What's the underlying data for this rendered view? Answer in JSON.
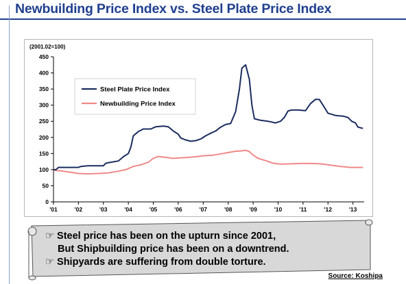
{
  "page": {
    "title": "Newbuilding Price Index vs. Steel Plate Price Index",
    "banner_lines": [
      "☞ Steel price has been on the upturn since 2001,",
      "But Shipbuilding price has been on a downtrend.",
      "☞ Shipyards are suffering from double torture."
    ],
    "source": "Source: Koshipa"
  },
  "chart_data": {
    "type": "line",
    "unit_label": "(2001.02=100)",
    "ylim": [
      0,
      450
    ],
    "yticks": [
      0,
      50,
      100,
      150,
      200,
      250,
      300,
      350,
      400,
      450
    ],
    "xlim": [
      2001,
      2013.45
    ],
    "xticks": [
      {
        "v": 2001,
        "label": "'01"
      },
      {
        "v": 2002,
        "label": "'02"
      },
      {
        "v": 2003,
        "label": "'03"
      },
      {
        "v": 2004,
        "label": "'04"
      },
      {
        "v": 2005,
        "label": "'05"
      },
      {
        "v": 2006,
        "label": "'06"
      },
      {
        "v": 2007,
        "label": "'07"
      },
      {
        "v": 2008,
        "label": "'08"
      },
      {
        "v": 2009,
        "label": "'09"
      },
      {
        "v": 2010,
        "label": "'10"
      },
      {
        "v": 2011,
        "label": "'11"
      },
      {
        "v": 2012,
        "label": "'12"
      },
      {
        "v": 2013,
        "label": "'13"
      }
    ],
    "legend_position": "top-left",
    "grid": false,
    "series": [
      {
        "name": "Steel Plate Price Index",
        "color": "#1a2c5e",
        "points": [
          [
            2001.0,
            100
          ],
          [
            2001.1,
            100
          ],
          [
            2001.2,
            107
          ],
          [
            2001.5,
            107
          ],
          [
            2002.0,
            107
          ],
          [
            2002.1,
            110
          ],
          [
            2002.4,
            112
          ],
          [
            2003.0,
            112
          ],
          [
            2003.1,
            120
          ],
          [
            2003.3,
            123
          ],
          [
            2003.6,
            127
          ],
          [
            2003.8,
            140
          ],
          [
            2004.0,
            150
          ],
          [
            2004.1,
            170
          ],
          [
            2004.2,
            205
          ],
          [
            2004.4,
            218
          ],
          [
            2004.6,
            226
          ],
          [
            2004.9,
            226
          ],
          [
            2005.1,
            233
          ],
          [
            2005.4,
            235
          ],
          [
            2005.6,
            233
          ],
          [
            2005.8,
            220
          ],
          [
            2006.0,
            210
          ],
          [
            2006.1,
            198
          ],
          [
            2006.3,
            192
          ],
          [
            2006.5,
            188
          ],
          [
            2006.7,
            190
          ],
          [
            2006.9,
            195
          ],
          [
            2007.1,
            205
          ],
          [
            2007.3,
            213
          ],
          [
            2007.5,
            220
          ],
          [
            2007.7,
            232
          ],
          [
            2007.9,
            240
          ],
          [
            2008.1,
            243
          ],
          [
            2008.3,
            280
          ],
          [
            2008.45,
            350
          ],
          [
            2008.55,
            415
          ],
          [
            2008.7,
            425
          ],
          [
            2008.85,
            380
          ],
          [
            2008.95,
            300
          ],
          [
            2009.05,
            258
          ],
          [
            2009.3,
            253
          ],
          [
            2009.6,
            250
          ],
          [
            2009.9,
            245
          ],
          [
            2010.1,
            250
          ],
          [
            2010.25,
            262
          ],
          [
            2010.4,
            282
          ],
          [
            2010.55,
            285
          ],
          [
            2010.8,
            285
          ],
          [
            2011.1,
            283
          ],
          [
            2011.3,
            305
          ],
          [
            2011.5,
            318
          ],
          [
            2011.65,
            318
          ],
          [
            2011.8,
            300
          ],
          [
            2012.0,
            275
          ],
          [
            2012.3,
            268
          ],
          [
            2012.6,
            266
          ],
          [
            2012.8,
            262
          ],
          [
            2012.95,
            250
          ],
          [
            2013.1,
            245
          ],
          [
            2013.2,
            232
          ],
          [
            2013.4,
            228
          ]
        ]
      },
      {
        "name": "Newbuilding Price Index",
        "color": "#f08888",
        "points": [
          [
            2001.0,
            98
          ],
          [
            2001.3,
            96
          ],
          [
            2001.6,
            93
          ],
          [
            2002.0,
            88
          ],
          [
            2002.4,
            87
          ],
          [
            2002.8,
            88
          ],
          [
            2003.2,
            90
          ],
          [
            2003.6,
            95
          ],
          [
            2003.9,
            100
          ],
          [
            2004.2,
            110
          ],
          [
            2004.5,
            115
          ],
          [
            2004.8,
            123
          ],
          [
            2005.0,
            135
          ],
          [
            2005.2,
            141
          ],
          [
            2005.5,
            138
          ],
          [
            2005.8,
            135
          ],
          [
            2006.0,
            136
          ],
          [
            2006.4,
            138
          ],
          [
            2006.8,
            141
          ],
          [
            2007.0,
            143
          ],
          [
            2007.4,
            145
          ],
          [
            2007.8,
            150
          ],
          [
            2008.0,
            153
          ],
          [
            2008.3,
            157
          ],
          [
            2008.5,
            158
          ],
          [
            2008.7,
            160
          ],
          [
            2008.85,
            156
          ],
          [
            2009.0,
            145
          ],
          [
            2009.2,
            135
          ],
          [
            2009.5,
            128
          ],
          [
            2009.8,
            120
          ],
          [
            2010.1,
            117
          ],
          [
            2010.5,
            118
          ],
          [
            2010.9,
            119
          ],
          [
            2011.3,
            119
          ],
          [
            2011.7,
            118
          ],
          [
            2012.1,
            114
          ],
          [
            2012.5,
            110
          ],
          [
            2012.9,
            107
          ],
          [
            2013.2,
            107
          ],
          [
            2013.4,
            107
          ]
        ]
      }
    ]
  }
}
